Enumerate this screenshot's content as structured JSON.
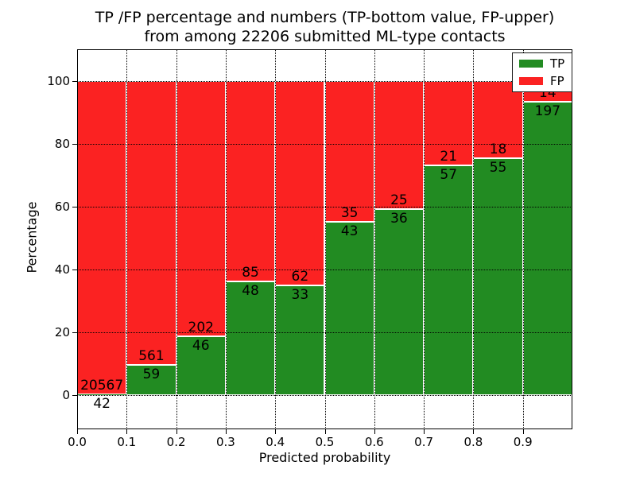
{
  "title": {
    "line1": "TP /FP percentage and numbers (TP-bottom value, FP-upper)",
    "line2": "from among 22206 submitted ML-type contacts"
  },
  "total_contacts": "22206",
  "chart_data": {
    "type": "bar",
    "stacked": true,
    "normalized_to_percent": true,
    "title": "TP /FP percentage and numbers (TP-bottom value, FP-upper) from among 22206 submitted ML-type contacts",
    "xlabel": "Predicted probability",
    "ylabel": "Percentage",
    "bin_starts": [
      0.0,
      0.1,
      0.2,
      0.3,
      0.4,
      0.5,
      0.6,
      0.7,
      0.8,
      0.9
    ],
    "bin_width": 0.1,
    "series": [
      {
        "name": "TP",
        "color": "#228b22",
        "values": [
          42,
          59,
          46,
          48,
          33,
          43,
          36,
          57,
          55,
          197
        ]
      },
      {
        "name": "FP",
        "color": "#fb2222",
        "values": [
          20567,
          561,
          202,
          85,
          62,
          35,
          25,
          21,
          18,
          14
        ]
      }
    ],
    "tp_percent": [
      0.2,
      9.5,
      18.5,
      36.1,
      34.7,
      55.1,
      59.0,
      73.1,
      75.3,
      93.4
    ],
    "x_ticks": [
      "0.0",
      "0.1",
      "0.2",
      "0.3",
      "0.4",
      "0.5",
      "0.6",
      "0.7",
      "0.8",
      "0.9"
    ],
    "y_ticks": [
      0,
      20,
      40,
      60,
      80,
      100
    ],
    "xlim": [
      0,
      1
    ],
    "ylim": [
      -11,
      110
    ],
    "grid": "dotted",
    "bar_edge_color": "#ffffff",
    "legend": {
      "position": "upper right",
      "entries": [
        {
          "label": "TP",
          "color": "#228b22"
        },
        {
          "label": "FP",
          "color": "#fb2222"
        }
      ]
    }
  }
}
